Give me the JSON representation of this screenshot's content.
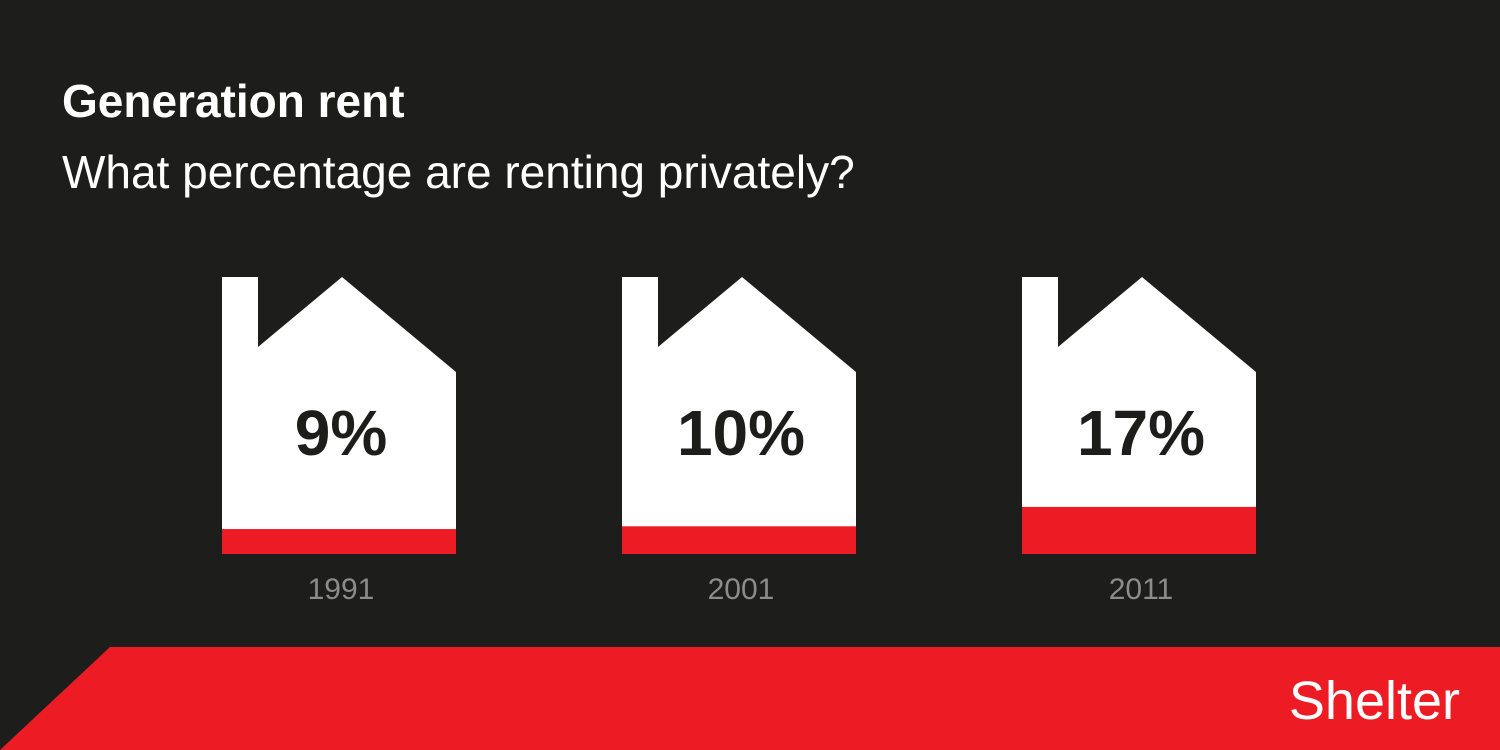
{
  "chart_data": {
    "type": "house-fill",
    "title": "Generation rent",
    "subtitle": "What percentage are renting privately?",
    "categories": [
      "1991",
      "2001",
      "2011"
    ],
    "values": [
      9,
      10,
      17
    ],
    "value_labels": [
      "9%",
      "10%",
      "17%"
    ],
    "color": "#ed1c24",
    "ylim": [
      0,
      100
    ],
    "brand": "Shelter"
  }
}
